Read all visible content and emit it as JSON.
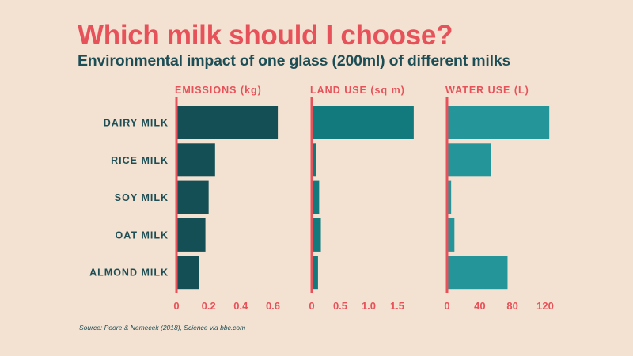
{
  "header": {
    "title": "Which milk should I choose?",
    "subtitle": "Environmental impact of one glass (200ml) of different milks"
  },
  "footer": {
    "source": "Source: Poore & Nemecek (2018), Science via bbc.com"
  },
  "colors": {
    "background": "#f3e1d1",
    "accent": "#e7525a",
    "text_dark": "#1d4e55"
  },
  "chart_data": [
    {
      "type": "bar",
      "orientation": "horizontal",
      "title": "EMISSIONS (kg)",
      "categories": [
        "DAIRY MILK",
        "RICE MILK",
        "SOY MILK",
        "OAT MILK",
        "ALMOND MILK"
      ],
      "values": [
        0.63,
        0.24,
        0.2,
        0.18,
        0.14
      ],
      "xlim": [
        0,
        0.6
      ],
      "ticks": [
        0,
        0.2,
        0.4,
        0.6
      ],
      "tick_labels": [
        "0",
        "0.2",
        "0.4",
        "0.6"
      ],
      "color": "#134f55",
      "grid": false
    },
    {
      "type": "bar",
      "orientation": "horizontal",
      "title": "LAND USE (sq m)",
      "categories": [
        "DAIRY MILK",
        "RICE MILK",
        "SOY MILK",
        "OAT MILK",
        "ALMOND MILK"
      ],
      "values": [
        1.79,
        0.07,
        0.13,
        0.16,
        0.11
      ],
      "xlim": [
        0,
        1.5
      ],
      "ticks": [
        0,
        0.5,
        1.0,
        1.5
      ],
      "tick_labels": [
        "0",
        "0.5",
        "1.0",
        "1.5"
      ],
      "color": "#12797c",
      "grid": false
    },
    {
      "type": "bar",
      "orientation": "horizontal",
      "title": "WATER USE (L)",
      "categories": [
        "DAIRY MILK",
        "RICE MILK",
        "SOY MILK",
        "OAT MILK",
        "ALMOND MILK"
      ],
      "values": [
        125,
        54,
        5,
        9,
        74
      ],
      "xlim": [
        0,
        120
      ],
      "ticks": [
        0,
        40,
        80,
        120
      ],
      "tick_labels": [
        "0",
        "40",
        "80",
        "120"
      ],
      "color": "#24969a",
      "grid": false
    }
  ]
}
